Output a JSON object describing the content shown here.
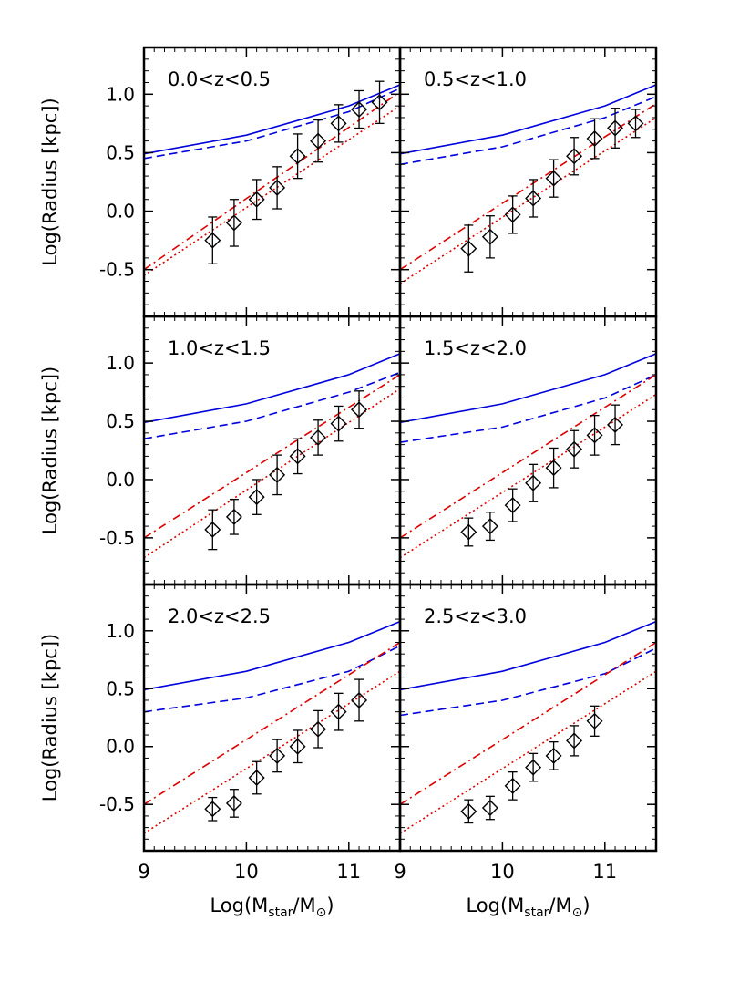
{
  "chart_data": {
    "type": "line",
    "layout": "3x2 grid",
    "ylabel": "Log(Radius [kpc])",
    "xlabel": {
      "prefix": "Log(M",
      "sub": "star",
      "mid": "/M",
      "sun": "⊙",
      "suffix": ")"
    },
    "xlim": [
      9,
      11.5
    ],
    "ylim": [
      -0.9,
      1.4
    ],
    "xticks": [
      9,
      10,
      11
    ],
    "xtick_labels": [
      "9",
      "10",
      "11"
    ],
    "yticks": [
      -0.5,
      0.0,
      0.5,
      1.0
    ],
    "ytick_labels": [
      "-0.5",
      "0.0",
      "0.5",
      "1.0"
    ],
    "series_styles": {
      "model_solid": {
        "color": "#0000dd",
        "style": "solid"
      },
      "model_dashed": {
        "color": "#0000dd",
        "style": "dashed"
      },
      "relation_dashdot": {
        "color": "#dd0000",
        "style": "dash-dot"
      },
      "relation_dotted": {
        "color": "#dd0000",
        "style": "dotted"
      },
      "data": {
        "color": "#000000",
        "marker": "diamond"
      }
    },
    "panels": [
      {
        "label": "0.0<z<0.5",
        "lines": {
          "model_solid": {
            "x": [
              9,
              10,
              11,
              11.5
            ],
            "y": [
              0.49,
              0.65,
              0.9,
              1.08
            ]
          },
          "model_dashed": {
            "x": [
              9,
              10,
              11,
              11.5
            ],
            "y": [
              0.45,
              0.6,
              0.85,
              1.05
            ]
          },
          "relation_dashdot": {
            "x": [
              9,
              11.5
            ],
            "y": [
              -0.5,
              1.02
            ]
          },
          "relation_dotted": {
            "x": [
              9,
              11.5
            ],
            "y": [
              -0.55,
              0.9
            ]
          }
        },
        "points": {
          "x": [
            9.67,
            9.88,
            10.1,
            10.3,
            10.5,
            10.7,
            10.9,
            11.1,
            11.3
          ],
          "y": [
            -0.25,
            -0.1,
            0.1,
            0.2,
            0.47,
            0.6,
            0.75,
            0.87,
            0.93
          ],
          "err": [
            0.2,
            0.2,
            0.17,
            0.18,
            0.19,
            0.18,
            0.16,
            0.16,
            0.18
          ]
        }
      },
      {
        "label": "0.5<z<1.0",
        "lines": {
          "model_solid": {
            "x": [
              9,
              10,
              11,
              11.5
            ],
            "y": [
              0.49,
              0.65,
              0.9,
              1.08
            ]
          },
          "model_dashed": {
            "x": [
              9,
              10,
              11,
              11.5
            ],
            "y": [
              0.4,
              0.55,
              0.8,
              0.98
            ]
          },
          "relation_dashdot": {
            "x": [
              9,
              11.5
            ],
            "y": [
              -0.5,
              0.92
            ]
          },
          "relation_dotted": {
            "x": [
              9,
              11.5
            ],
            "y": [
              -0.62,
              0.8
            ]
          }
        },
        "points": {
          "x": [
            9.67,
            9.88,
            10.1,
            10.3,
            10.5,
            10.7,
            10.9,
            11.1,
            11.3
          ],
          "y": [
            -0.32,
            -0.22,
            -0.03,
            0.11,
            0.28,
            0.47,
            0.62,
            0.71,
            0.75
          ],
          "err": [
            0.2,
            0.18,
            0.16,
            0.16,
            0.16,
            0.16,
            0.17,
            0.17,
            0.12
          ]
        }
      },
      {
        "label": "1.0<z<1.5",
        "lines": {
          "model_solid": {
            "x": [
              9,
              10,
              11,
              11.5
            ],
            "y": [
              0.49,
              0.65,
              0.9,
              1.08
            ]
          },
          "model_dashed": {
            "x": [
              9,
              10,
              11,
              11.5
            ],
            "y": [
              0.35,
              0.5,
              0.75,
              0.92
            ]
          },
          "relation_dashdot": {
            "x": [
              9,
              11.5
            ],
            "y": [
              -0.5,
              0.9
            ]
          },
          "relation_dotted": {
            "x": [
              9,
              11.5
            ],
            "y": [
              -0.67,
              0.78
            ]
          }
        },
        "points": {
          "x": [
            9.67,
            9.88,
            10.1,
            10.3,
            10.5,
            10.7,
            10.9,
            11.1
          ],
          "y": [
            -0.43,
            -0.32,
            -0.15,
            0.04,
            0.2,
            0.36,
            0.48,
            0.6
          ],
          "err": [
            0.17,
            0.15,
            0.15,
            0.17,
            0.15,
            0.15,
            0.15,
            0.16
          ]
        }
      },
      {
        "label": "1.5<z<2.0",
        "lines": {
          "model_solid": {
            "x": [
              9,
              10,
              11,
              11.5
            ],
            "y": [
              0.49,
              0.65,
              0.9,
              1.08
            ]
          },
          "model_dashed": {
            "x": [
              9,
              10,
              11,
              11.5
            ],
            "y": [
              0.32,
              0.45,
              0.7,
              0.9
            ]
          },
          "relation_dashdot": {
            "x": [
              9,
              11.5
            ],
            "y": [
              -0.5,
              0.9
            ]
          },
          "relation_dotted": {
            "x": [
              9,
              11.5
            ],
            "y": [
              -0.67,
              0.73
            ]
          }
        },
        "points": {
          "x": [
            9.67,
            9.88,
            10.1,
            10.3,
            10.5,
            10.7,
            10.9,
            11.1
          ],
          "y": [
            -0.45,
            -0.4,
            -0.22,
            -0.03,
            0.1,
            0.26,
            0.38,
            0.47
          ],
          "err": [
            0.12,
            0.12,
            0.14,
            0.16,
            0.17,
            0.16,
            0.17,
            0.17
          ]
        }
      },
      {
        "label": "2.0<z<2.5",
        "lines": {
          "model_solid": {
            "x": [
              9,
              10,
              11,
              11.5
            ],
            "y": [
              0.49,
              0.65,
              0.9,
              1.08
            ]
          },
          "model_dashed": {
            "x": [
              9,
              10,
              11,
              11.5
            ],
            "y": [
              0.3,
              0.42,
              0.65,
              0.87
            ]
          },
          "relation_dashdot": {
            "x": [
              9,
              11.5
            ],
            "y": [
              -0.5,
              0.9
            ]
          },
          "relation_dotted": {
            "x": [
              9,
              11.5
            ],
            "y": [
              -0.75,
              0.65
            ]
          }
        },
        "points": {
          "x": [
            9.67,
            9.88,
            10.1,
            10.3,
            10.5,
            10.7,
            10.9,
            11.1
          ],
          "y": [
            -0.54,
            -0.49,
            -0.27,
            -0.08,
            0.0,
            0.15,
            0.3,
            0.4
          ],
          "err": [
            0.1,
            0.12,
            0.14,
            0.14,
            0.14,
            0.16,
            0.16,
            0.18
          ]
        }
      },
      {
        "label": "2.5<z<3.0",
        "lines": {
          "model_solid": {
            "x": [
              9,
              10,
              11,
              11.5
            ],
            "y": [
              0.49,
              0.65,
              0.9,
              1.08
            ]
          },
          "model_dashed": {
            "x": [
              9,
              10,
              11,
              11.5
            ],
            "y": [
              0.27,
              0.4,
              0.63,
              0.85
            ]
          },
          "relation_dashdot": {
            "x": [
              9,
              11.5
            ],
            "y": [
              -0.5,
              0.9
            ]
          },
          "relation_dotted": {
            "x": [
              9,
              11.5
            ],
            "y": [
              -0.75,
              0.65
            ]
          }
        },
        "points": {
          "x": [
            9.67,
            9.88,
            10.1,
            10.3,
            10.5,
            10.7,
            10.9
          ],
          "y": [
            -0.56,
            -0.53,
            -0.34,
            -0.18,
            -0.08,
            0.05,
            0.22
          ],
          "err": [
            0.1,
            0.1,
            0.12,
            0.12,
            0.12,
            0.13,
            0.13
          ]
        }
      }
    ]
  }
}
